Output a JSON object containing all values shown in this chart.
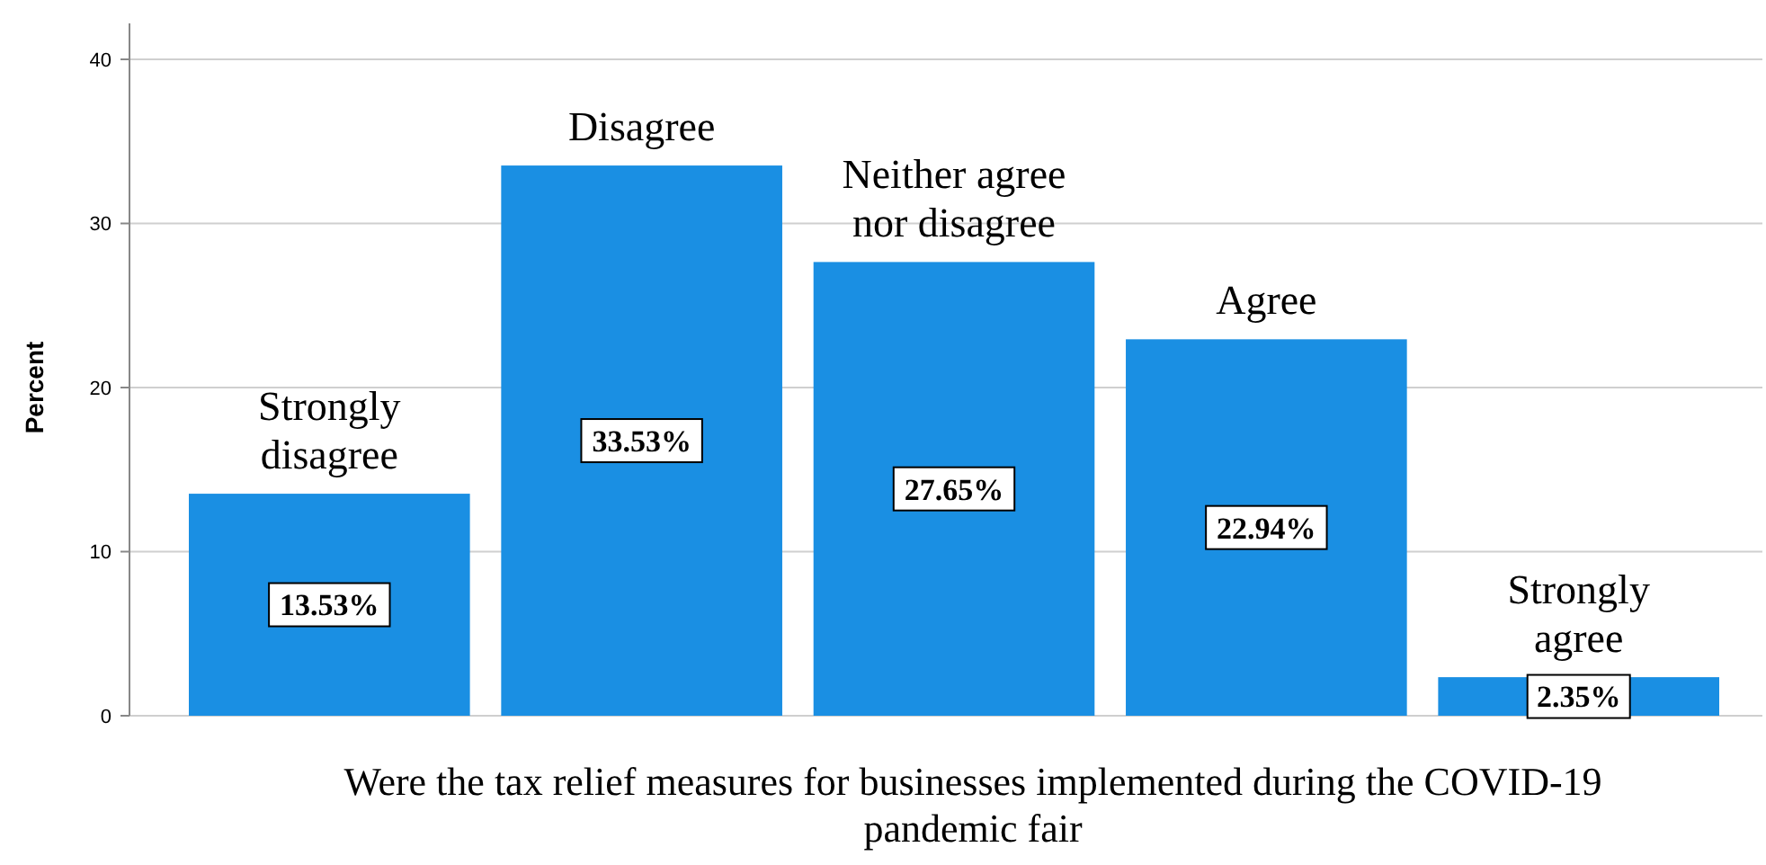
{
  "chart_data": {
    "type": "bar",
    "xlabel": "Were the tax relief measures for businesses implemented during the COVID-19 pandemic fair",
    "ylabel": "Percent",
    "categories": [
      "Strongly disagree",
      "Disagree",
      "Neither agree nor disagree",
      "Agree",
      "Strongly agree"
    ],
    "values": [
      13.53,
      33.53,
      27.65,
      22.94,
      2.35
    ],
    "value_labels": [
      "13.53%",
      "33.53%",
      "27.65%",
      "22.94%",
      "2.35%"
    ],
    "color": "#1a8fe3",
    "ylim": [
      0,
      40
    ],
    "yticks": [
      0,
      10,
      20,
      30,
      40
    ],
    "grid": "y"
  }
}
